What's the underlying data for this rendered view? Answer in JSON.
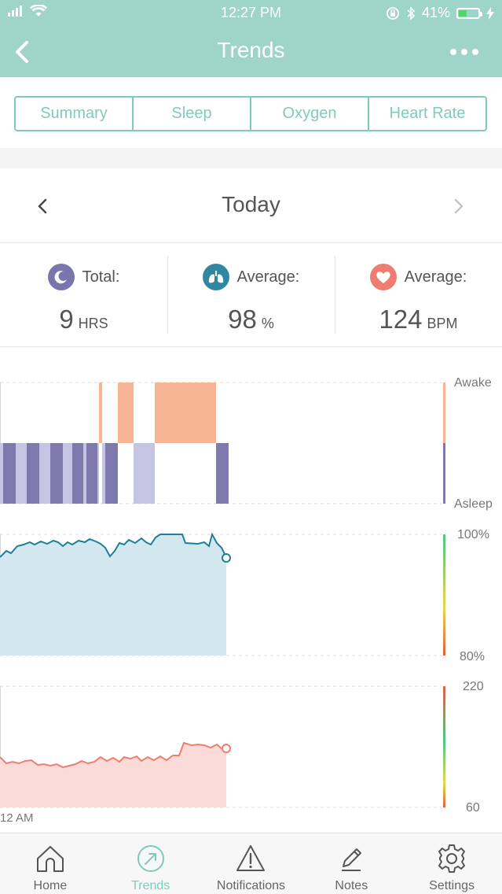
{
  "status_bar": {
    "time": "12:27 PM",
    "battery": "41%",
    "battery_level": 0.41
  },
  "nav": {
    "title": "Trends"
  },
  "segments": [
    "Summary",
    "Sleep",
    "Oxygen",
    "Heart Rate"
  ],
  "active_segment": 0,
  "date": {
    "label": "Today"
  },
  "stats": [
    {
      "label": "Total:",
      "value": "9",
      "unit": "HRS",
      "icon": "moon-icon",
      "color": "#7b75ad"
    },
    {
      "label": "Average:",
      "value": "98",
      "unit": "%",
      "icon": "lungs-icon",
      "color": "#2f87a0"
    },
    {
      "label": "Average:",
      "value": "124",
      "unit": "BPM",
      "icon": "heart-icon",
      "color": "#ef7c70"
    }
  ],
  "charts": {
    "sleep": {
      "top_label": "Awake",
      "bottom_label": "Asleep"
    },
    "oxygen": {
      "top_label": "100%",
      "bottom_label": "80%"
    },
    "heart": {
      "top_label": "220",
      "bottom_label": "60"
    },
    "time_label": "12 AM"
  },
  "tabbar": [
    {
      "label": "Home",
      "icon": "home-icon"
    },
    {
      "label": "Trends",
      "icon": "trends-icon"
    },
    {
      "label": "Notifications",
      "icon": "warning-icon"
    },
    {
      "label": "Notes",
      "icon": "pencil-icon"
    },
    {
      "label": "Settings",
      "icon": "gear-icon"
    }
  ],
  "active_tab": 1,
  "colors": {
    "accent": "#7fcbbb",
    "header": "#9fd5c9",
    "awake": "#f7b595",
    "asleep_deep": "#7f7aae",
    "asleep_light": "#c5c4e2",
    "oxygen_line": "#1f7f9a",
    "oxygen_fill": "#d3e7ee",
    "heart_line": "#ef7c70",
    "heart_fill": "#fadbd7"
  }
}
